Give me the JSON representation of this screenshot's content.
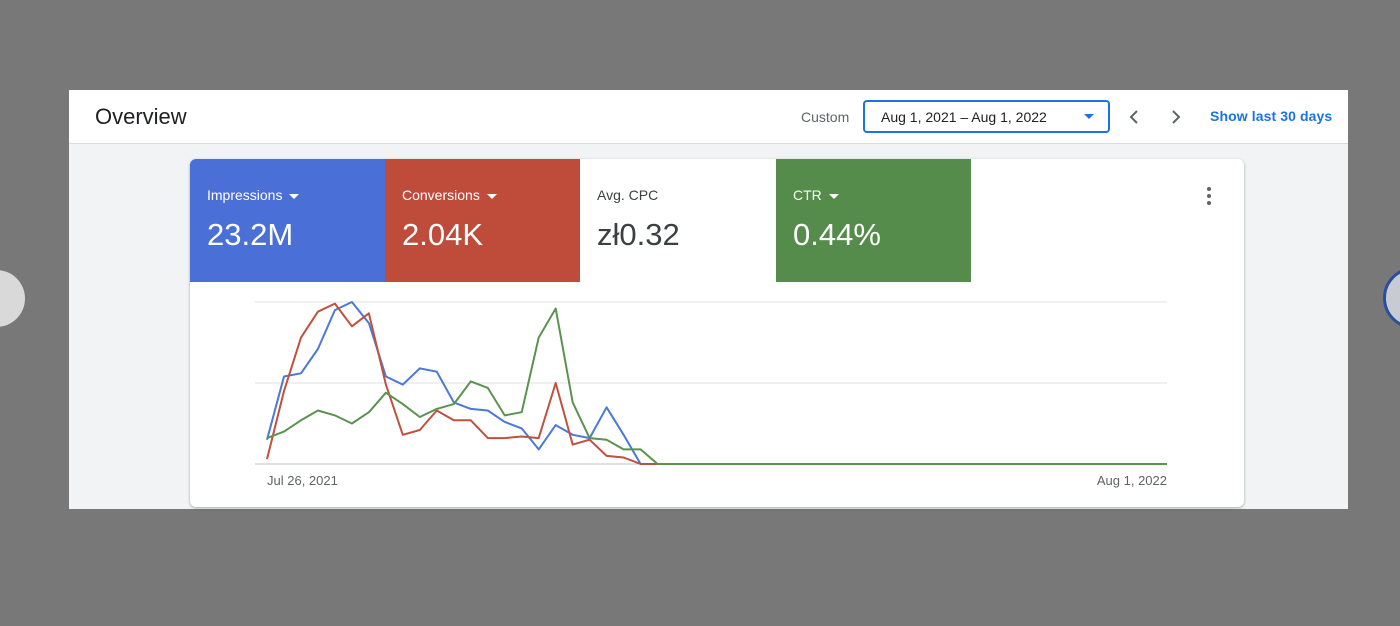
{
  "header": {
    "title": "Overview",
    "custom_label": "Custom",
    "date_range": "Aug 1, 2021 – Aug 1, 2022",
    "show_last_label": "Show last 30 days"
  },
  "metrics": [
    {
      "label": "Impressions",
      "value": "23.2M",
      "color": "#4a6fd6",
      "selected": true,
      "dropdown": true
    },
    {
      "label": "Conversions",
      "value": "2.04K",
      "color": "#bf4b3b",
      "selected": true,
      "dropdown": true
    },
    {
      "label": "Avg. CPC",
      "value": "zł0.32",
      "color": "#ffffff",
      "selected": false,
      "dropdown": false
    },
    {
      "label": "CTR",
      "value": "0.44%",
      "color": "#558b4b",
      "selected": true,
      "dropdown": true
    }
  ],
  "chart_data": {
    "type": "line",
    "x_start_label": "Jul 26, 2021",
    "x_end_label": "Aug 1, 2022",
    "x": [
      "2021-07-26",
      "2021-08-02",
      "2021-08-09",
      "2021-08-16",
      "2021-08-23",
      "2021-08-30",
      "2021-09-06",
      "2021-09-13",
      "2021-09-20",
      "2021-09-27",
      "2021-10-04",
      "2021-10-11",
      "2021-10-18",
      "2021-10-25",
      "2021-11-01",
      "2021-11-08",
      "2021-11-15",
      "2021-11-22",
      "2021-11-29",
      "2021-12-06",
      "2021-12-13",
      "2021-12-20",
      "2021-12-27",
      "2022-01-03",
      "2022-01-10",
      "2022-01-17",
      "2022-01-24",
      "2022-08-01"
    ],
    "grid": true,
    "series": [
      {
        "color": "#4a78db",
        "values": [
          0.15,
          0.54,
          0.56,
          0.71,
          0.95,
          1.0,
          0.87,
          0.54,
          0.49,
          0.59,
          0.57,
          0.38,
          0.34,
          0.33,
          0.26,
          0.22,
          0.09,
          0.24,
          0.18,
          0.16,
          0.35,
          0.18,
          0.0,
          0.0,
          0.0,
          0.0,
          0.0,
          0.0
        ]
      },
      {
        "color": "#c0503f",
        "values": [
          0.03,
          0.45,
          0.78,
          0.94,
          0.99,
          0.85,
          0.93,
          0.49,
          0.18,
          0.21,
          0.33,
          0.27,
          0.27,
          0.16,
          0.16,
          0.17,
          0.16,
          0.5,
          0.12,
          0.15,
          0.05,
          0.04,
          0.0,
          0.0,
          0.0,
          0.0,
          0.0,
          0.0
        ]
      },
      {
        "color": "#5a934e",
        "values": [
          0.16,
          0.2,
          0.27,
          0.33,
          0.3,
          0.25,
          0.32,
          0.44,
          0.37,
          0.29,
          0.34,
          0.37,
          0.51,
          0.47,
          0.3,
          0.32,
          0.78,
          0.96,
          0.38,
          0.16,
          0.15,
          0.09,
          0.09,
          0.0,
          0.0,
          0.0,
          0.0,
          0.0
        ]
      }
    ],
    "ylim": [
      0,
      1
    ]
  }
}
